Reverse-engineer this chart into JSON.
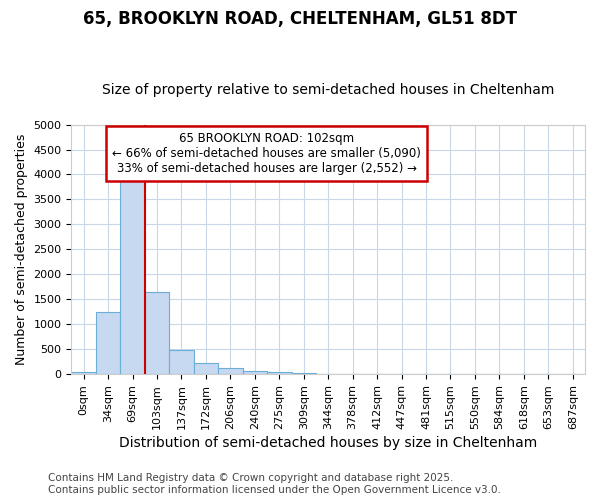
{
  "title": "65, BROOKLYN ROAD, CHELTENHAM, GL51 8DT",
  "subtitle": "Size of property relative to semi-detached houses in Cheltenham",
  "xlabel": "Distribution of semi-detached houses by size in Cheltenham",
  "ylabel": "Number of semi-detached properties",
  "bar_labels": [
    "0sqm",
    "34sqm",
    "69sqm",
    "103sqm",
    "137sqm",
    "172sqm",
    "206sqm",
    "240sqm",
    "275sqm",
    "309sqm",
    "344sqm",
    "378sqm",
    "412sqm",
    "447sqm",
    "481sqm",
    "515sqm",
    "550sqm",
    "584sqm",
    "618sqm",
    "653sqm",
    "687sqm"
  ],
  "bar_values": [
    50,
    1250,
    4050,
    1650,
    480,
    220,
    130,
    70,
    40,
    15,
    5,
    2,
    1,
    0,
    0,
    0,
    0,
    0,
    0,
    0,
    0
  ],
  "bar_color": "#c6d9f0",
  "bar_edge_color": "#6baed6",
  "red_line_x": 2.5,
  "ylim": [
    0,
    5000
  ],
  "yticks": [
    0,
    500,
    1000,
    1500,
    2000,
    2500,
    3000,
    3500,
    4000,
    4500,
    5000
  ],
  "annotation_line1": "65 BROOKLYN ROAD: 102sqm",
  "annotation_line2": "← 66% of semi-detached houses are smaller (5,090)",
  "annotation_line3": "33% of semi-detached houses are larger (2,552) →",
  "annotation_box_color": "#ffffff",
  "annotation_box_edge_color": "#cc0000",
  "footnote": "Contains HM Land Registry data © Crown copyright and database right 2025.\nContains public sector information licensed under the Open Government Licence v3.0.",
  "bg_color": "#ffffff",
  "plot_bg_color": "#ffffff",
  "grid_color": "#c8d8e8",
  "title_fontsize": 12,
  "subtitle_fontsize": 10,
  "xlabel_fontsize": 10,
  "ylabel_fontsize": 9,
  "tick_fontsize": 8,
  "footnote_fontsize": 7.5
}
